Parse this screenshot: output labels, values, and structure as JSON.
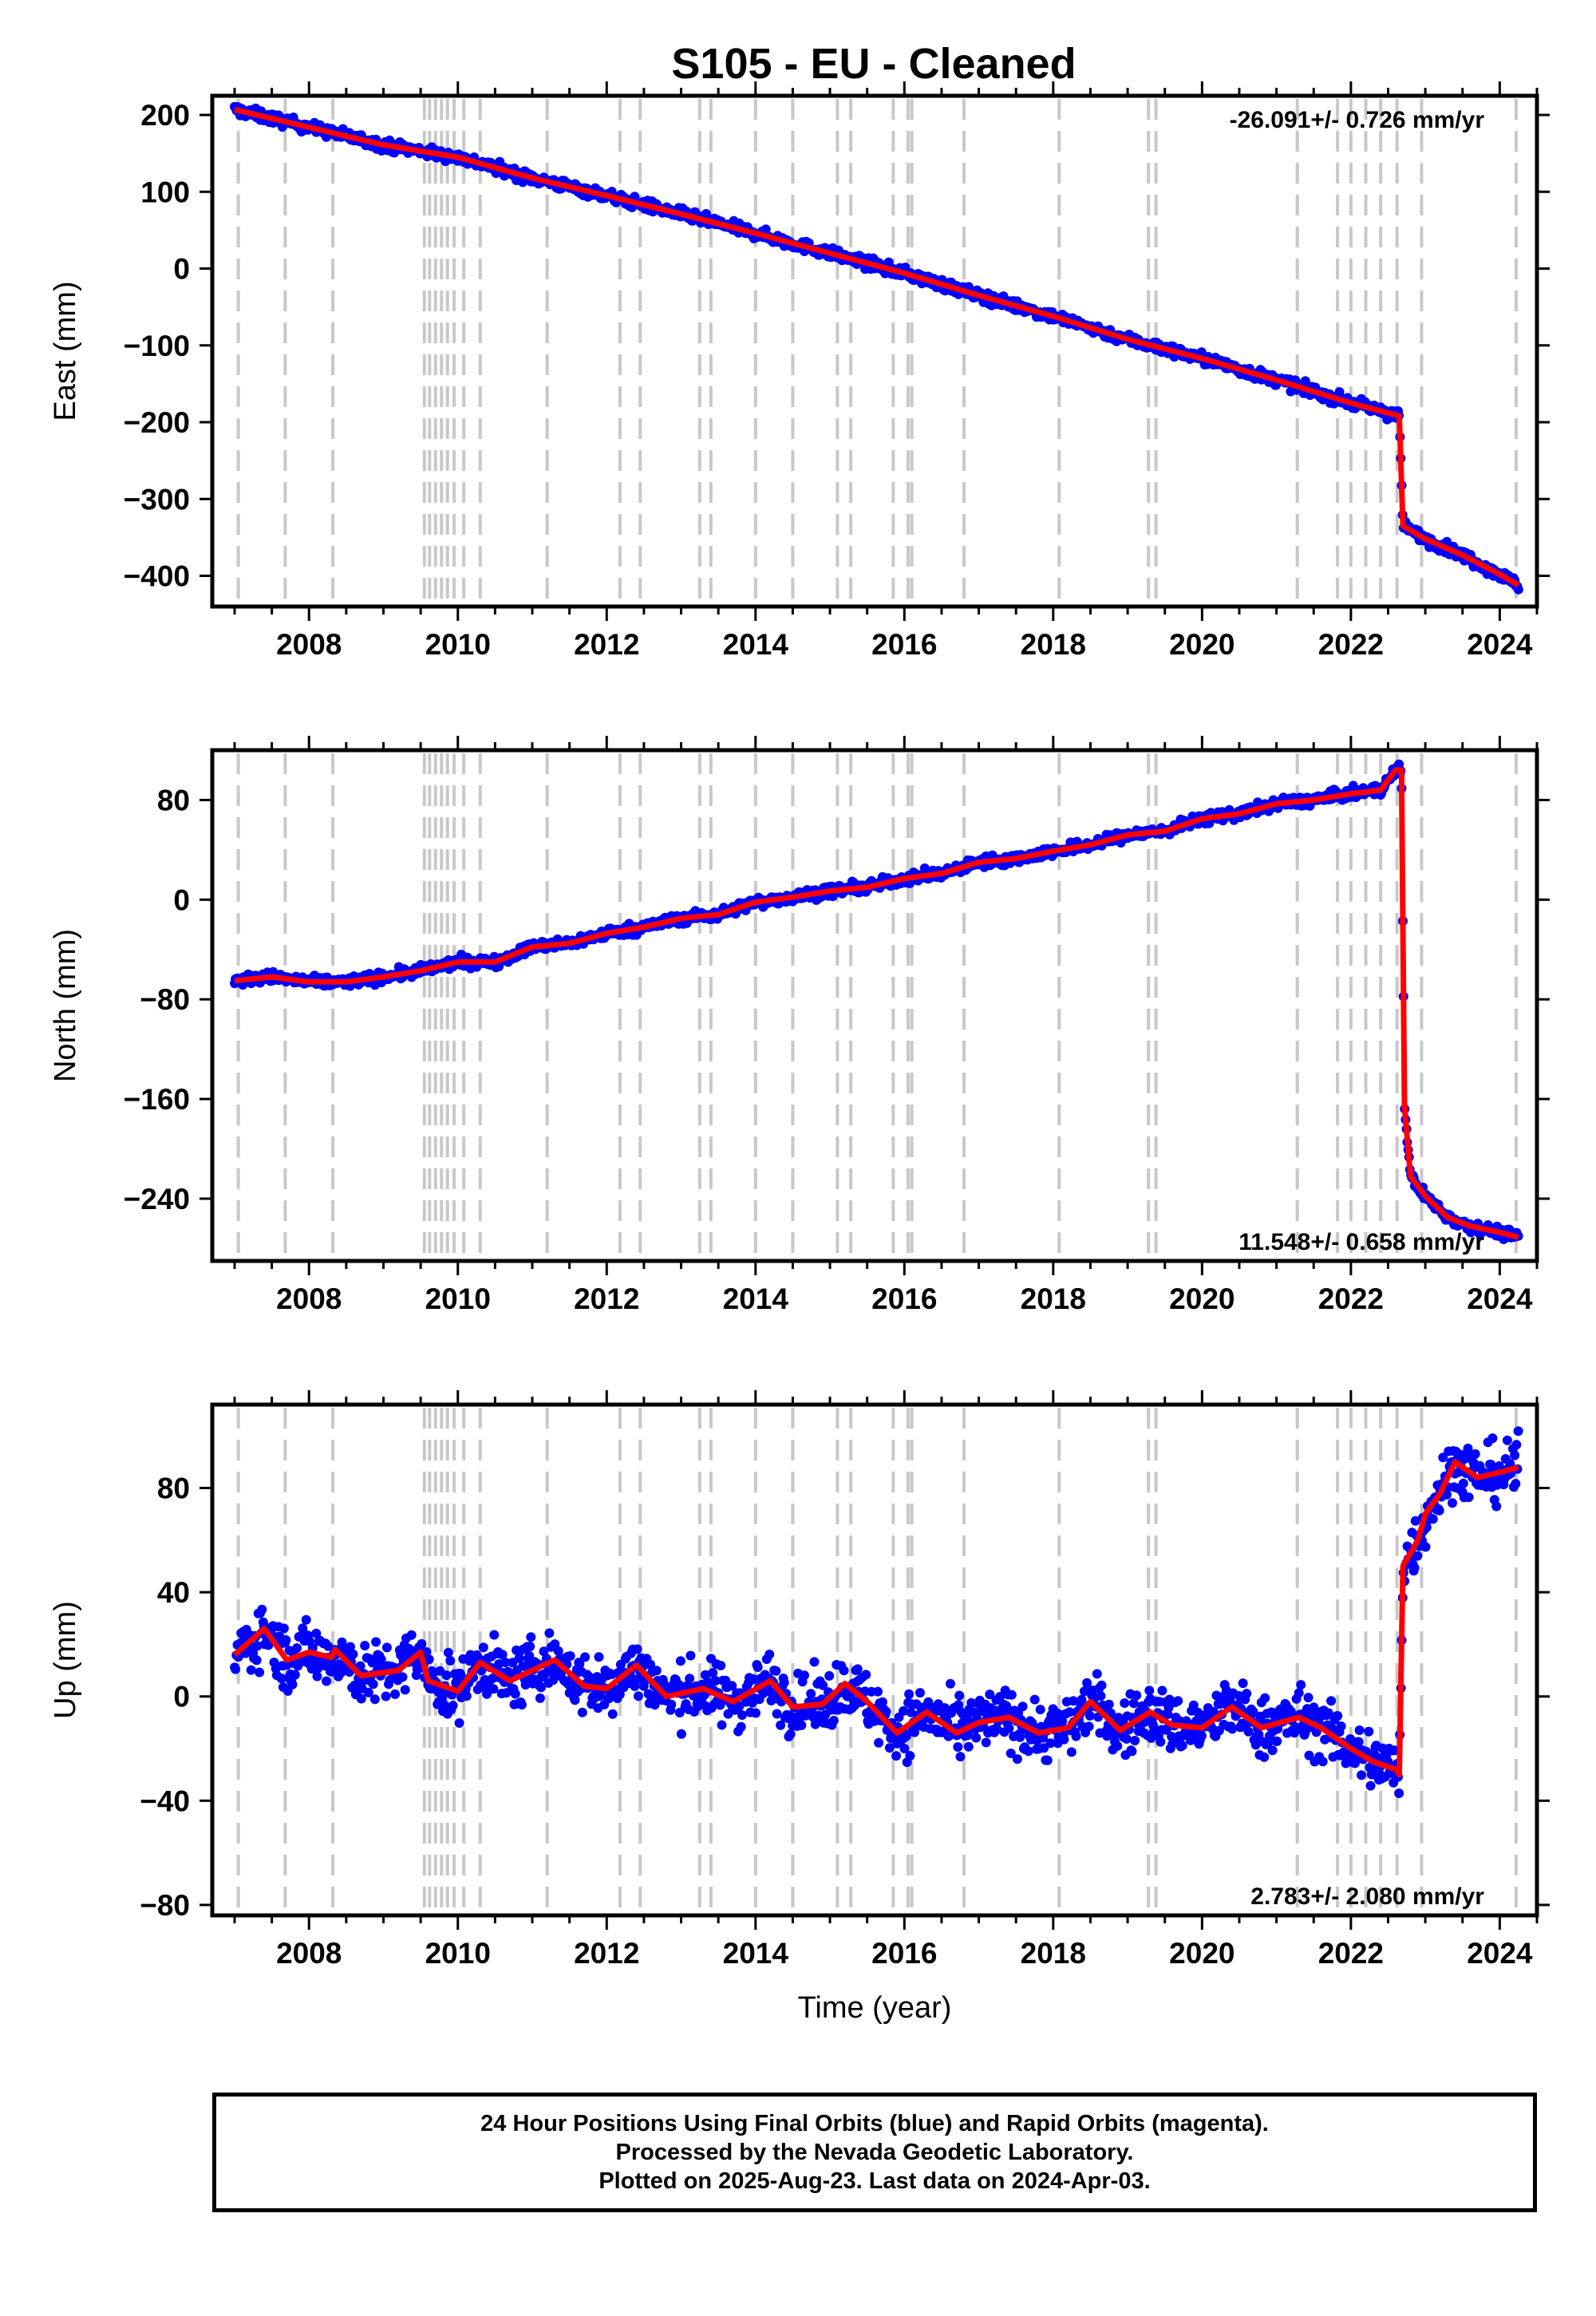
{
  "title": "S105  - EU - Cleaned",
  "colors": {
    "data_points": "#0000ff",
    "model_line": "#ff0000",
    "epoch_lines": "#c8c8c8",
    "frame": "#000000"
  },
  "footer": {
    "line1": "24 Hour Positions Using Final Orbits (blue) and Rapid Orbits (magenta).",
    "line2": "Processed by the Nevada Geodetic Laboratory.",
    "line3": "Plotted on 2025-Aug-23. Last data on 2024-Apr-03."
  },
  "chart_data": [
    {
      "type": "scatter",
      "panel": "east",
      "ylabel": "East (mm)",
      "xlim": [
        2006.7,
        2024.5
      ],
      "ylim": [
        -440,
        225
      ],
      "xticks": [
        2008,
        2010,
        2012,
        2014,
        2016,
        2018,
        2020,
        2022,
        2024
      ],
      "yticks": [
        200,
        100,
        0,
        -100,
        -200,
        -300,
        -400
      ],
      "grid": false,
      "rate_label": "-26.091+/- 0.726 mm/yr",
      "rate_label_position": "top-right",
      "noise_mm": 5,
      "series": [
        {
          "name": "Final Orbits",
          "style": "points",
          "x": [
            2007.0,
            2008.0,
            2009.0,
            2010.0,
            2011.0,
            2012.0,
            2013.0,
            2014.0,
            2015.0,
            2016.0,
            2017.0,
            2018.0,
            2019.0,
            2020.0,
            2021.0,
            2022.0,
            2022.65,
            2022.7,
            2023.0,
            2023.5,
            2024.0,
            2024.25
          ],
          "y": [
            207,
            184,
            161,
            145,
            118,
            95,
            71,
            46,
            20,
            -6,
            -35,
            -62,
            -92,
            -117,
            -145,
            -175,
            -192,
            -335,
            -352,
            -373,
            -398,
            -412
          ]
        },
        {
          "name": "Model",
          "style": "line",
          "x": [
            2007.0,
            2008.0,
            2009.0,
            2010.0,
            2011.0,
            2012.0,
            2013.0,
            2014.0,
            2015.0,
            2016.0,
            2017.0,
            2018.0,
            2019.0,
            2020.0,
            2021.0,
            2022.0,
            2022.65,
            2022.7,
            2023.0,
            2023.5,
            2024.0,
            2024.25
          ],
          "y": [
            207,
            184,
            161,
            145,
            118,
            95,
            71,
            46,
            20,
            -6,
            -35,
            -62,
            -92,
            -117,
            -145,
            -175,
            -192,
            -335,
            -352,
            -373,
            -398,
            -412
          ]
        }
      ],
      "epoch_lines": [
        2007.05,
        2007.68,
        2008.32,
        2009.55,
        2009.62,
        2009.7,
        2009.78,
        2009.86,
        2009.95,
        2010.08,
        2010.3,
        2011.2,
        2012.18,
        2012.45,
        2013.25,
        2013.4,
        2014.0,
        2014.5,
        2015.1,
        2015.28,
        2015.85,
        2016.05,
        2016.1,
        2016.8,
        2018.08,
        2019.28,
        2019.38,
        2021.28,
        2021.82,
        2022.0,
        2022.2,
        2022.4,
        2022.62,
        2022.95,
        2024.22
      ]
    },
    {
      "type": "scatter",
      "panel": "north",
      "ylabel": "North (mm)",
      "xlim": [
        2006.7,
        2024.5
      ],
      "ylim": [
        -290,
        120
      ],
      "xticks": [
        2008,
        2010,
        2012,
        2014,
        2016,
        2018,
        2020,
        2022,
        2024
      ],
      "yticks": [
        80,
        0,
        -80,
        -160,
        -240
      ],
      "grid": false,
      "rate_label": "11.548+/- 0.658 mm/yr",
      "rate_label_position": "bottom-right",
      "noise_mm": 3,
      "series": [
        {
          "name": "Final Orbits",
          "style": "points",
          "x": [
            2007.0,
            2007.5,
            2008.0,
            2008.5,
            2009.0,
            2009.5,
            2010.0,
            2010.5,
            2011.0,
            2011.5,
            2012.0,
            2012.5,
            2013.0,
            2013.5,
            2014.0,
            2014.5,
            2015.0,
            2015.5,
            2016.0,
            2016.5,
            2017.0,
            2017.5,
            2018.0,
            2018.5,
            2019.0,
            2019.5,
            2020.0,
            2020.5,
            2021.0,
            2021.5,
            2022.0,
            2022.4,
            2022.6,
            2022.68,
            2022.72,
            2022.8,
            2023.0,
            2023.3,
            2023.6,
            2024.0,
            2024.25
          ],
          "y": [
            -65,
            -62,
            -66,
            -66,
            -62,
            -57,
            -50,
            -50,
            -38,
            -35,
            -27,
            -22,
            -15,
            -12,
            -2,
            2,
            7,
            10,
            17,
            21,
            30,
            33,
            39,
            44,
            52,
            55,
            65,
            69,
            77,
            80,
            85,
            88,
            104,
            104,
            -165,
            -222,
            -238,
            -255,
            -262,
            -267,
            -271
          ]
        },
        {
          "name": "Model",
          "style": "line",
          "x": [
            2007.0,
            2007.5,
            2008.0,
            2008.5,
            2009.0,
            2009.5,
            2010.0,
            2010.5,
            2011.0,
            2011.5,
            2012.0,
            2012.5,
            2013.0,
            2013.5,
            2014.0,
            2014.5,
            2015.0,
            2015.5,
            2016.0,
            2016.5,
            2017.0,
            2017.5,
            2018.0,
            2018.5,
            2019.0,
            2019.5,
            2020.0,
            2020.5,
            2021.0,
            2021.5,
            2022.0,
            2022.4,
            2022.6,
            2022.68,
            2022.72,
            2022.8,
            2023.0,
            2023.3,
            2023.6,
            2024.0,
            2024.25
          ],
          "y": [
            -65,
            -62,
            -66,
            -66,
            -62,
            -57,
            -50,
            -50,
            -38,
            -35,
            -27,
            -22,
            -15,
            -12,
            -2,
            2,
            7,
            10,
            17,
            21,
            30,
            33,
            39,
            44,
            52,
            55,
            65,
            69,
            77,
            80,
            85,
            88,
            104,
            104,
            -165,
            -222,
            -238,
            -255,
            -262,
            -267,
            -271
          ]
        }
      ],
      "epoch_lines": [
        2007.05,
        2007.68,
        2008.32,
        2009.55,
        2009.62,
        2009.7,
        2009.78,
        2009.86,
        2009.95,
        2010.08,
        2010.3,
        2011.2,
        2012.18,
        2012.45,
        2013.25,
        2013.4,
        2014.0,
        2014.5,
        2015.1,
        2015.28,
        2015.85,
        2016.05,
        2016.1,
        2016.8,
        2018.08,
        2019.28,
        2019.38,
        2021.28,
        2021.82,
        2022.0,
        2022.2,
        2022.4,
        2022.62,
        2022.95,
        2024.22
      ]
    },
    {
      "type": "scatter",
      "panel": "up",
      "ylabel": "Up (mm)",
      "xlabel": "Time (year)",
      "xlim": [
        2006.7,
        2024.5
      ],
      "ylim": [
        -84,
        112
      ],
      "xticks": [
        2008,
        2010,
        2012,
        2014,
        2016,
        2018,
        2020,
        2022,
        2024
      ],
      "yticks": [
        80,
        40,
        0,
        -40,
        -80
      ],
      "grid": false,
      "rate_label": "2.783+/- 2.080 mm/yr",
      "rate_label_position": "bottom-right",
      "noise_mm": 8,
      "series": [
        {
          "name": "Final Orbits",
          "style": "points",
          "x": [
            2007.0,
            2007.4,
            2007.7,
            2008.0,
            2008.3,
            2008.35,
            2008.7,
            2009.2,
            2009.5,
            2009.6,
            2010.0,
            2010.3,
            2010.7,
            2011.0,
            2011.3,
            2011.7,
            2012.0,
            2012.4,
            2012.8,
            2013.3,
            2013.7,
            2014.2,
            2014.5,
            2014.9,
            2015.2,
            2015.5,
            2015.9,
            2016.3,
            2016.7,
            2017.0,
            2017.4,
            2017.8,
            2018.2,
            2018.5,
            2018.9,
            2019.3,
            2019.6,
            2020.0,
            2020.4,
            2020.8,
            2021.3,
            2021.6,
            2022.0,
            2022.3,
            2022.6,
            2022.65,
            2022.7,
            2022.9,
            2023.0,
            2023.2,
            2023.4,
            2023.7,
            2024.0,
            2024.25
          ],
          "y": [
            16,
            26,
            14,
            17,
            15,
            18,
            8,
            10,
            17,
            6,
            2,
            13,
            6,
            10,
            14,
            4,
            3,
            12,
            0,
            3,
            -2,
            6,
            -4,
            -3,
            5,
            -2,
            -14,
            -6,
            -14,
            -10,
            -8,
            -14,
            -12,
            -2,
            -13,
            -6,
            -11,
            -12,
            -4,
            -12,
            -8,
            -12,
            -20,
            -25,
            -28,
            -30,
            50,
            60,
            70,
            78,
            90,
            84,
            86,
            88
          ]
        },
        {
          "name": "Model",
          "style": "line",
          "x": [
            2007.0,
            2007.4,
            2007.7,
            2008.0,
            2008.3,
            2008.35,
            2008.7,
            2009.2,
            2009.5,
            2009.6,
            2010.0,
            2010.3,
            2010.7,
            2011.0,
            2011.3,
            2011.7,
            2012.0,
            2012.4,
            2012.8,
            2013.3,
            2013.7,
            2014.2,
            2014.5,
            2014.9,
            2015.2,
            2015.5,
            2015.9,
            2016.3,
            2016.7,
            2017.0,
            2017.4,
            2017.8,
            2018.2,
            2018.5,
            2018.9,
            2019.3,
            2019.6,
            2020.0,
            2020.4,
            2020.8,
            2021.3,
            2021.6,
            2022.0,
            2022.3,
            2022.6,
            2022.65,
            2022.7,
            2022.9,
            2023.0,
            2023.2,
            2023.4,
            2023.7,
            2024.0,
            2024.25
          ],
          "y": [
            16,
            26,
            14,
            17,
            15,
            18,
            8,
            10,
            17,
            6,
            2,
            13,
            6,
            10,
            14,
            4,
            3,
            12,
            0,
            3,
            -2,
            6,
            -4,
            -3,
            5,
            -2,
            -14,
            -6,
            -14,
            -10,
            -8,
            -14,
            -12,
            -2,
            -13,
            -6,
            -11,
            -12,
            -4,
            -12,
            -8,
            -12,
            -20,
            -25,
            -28,
            -30,
            50,
            60,
            70,
            78,
            90,
            84,
            86,
            88
          ]
        }
      ],
      "epoch_lines": [
        2007.05,
        2007.68,
        2008.32,
        2009.55,
        2009.62,
        2009.7,
        2009.78,
        2009.86,
        2009.95,
        2010.08,
        2010.3,
        2011.2,
        2012.18,
        2012.45,
        2013.25,
        2013.4,
        2014.0,
        2014.5,
        2015.1,
        2015.28,
        2015.85,
        2016.05,
        2016.1,
        2016.8,
        2018.08,
        2019.28,
        2019.38,
        2021.28,
        2021.82,
        2022.0,
        2022.2,
        2022.4,
        2022.62,
        2022.95,
        2024.22
      ]
    }
  ]
}
